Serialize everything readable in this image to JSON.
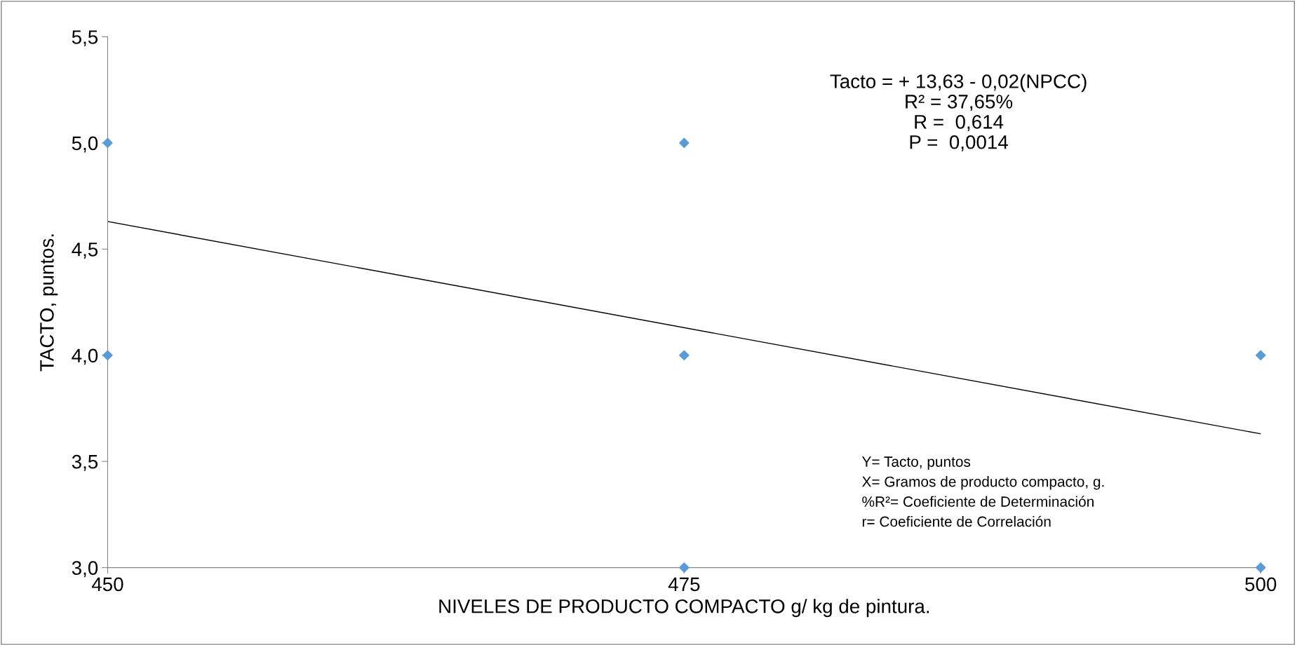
{
  "chart_data": {
    "type": "scatter",
    "xlabel": "NIVELES DE PRODUCTO COMPACTO g/ kg de pintura.",
    "ylabel": "TACTO, puntos.",
    "xlim": [
      450,
      500
    ],
    "xticks": [
      450,
      475,
      500
    ],
    "ylim": [
      3.0,
      5.5
    ],
    "yticks": [
      {
        "value": 3.0,
        "label": "3,0"
      },
      {
        "value": 3.5,
        "label": "3,5"
      },
      {
        "value": 4.0,
        "label": "4,0"
      },
      {
        "value": 4.5,
        "label": "4,5"
      },
      {
        "value": 5.0,
        "label": "5,0"
      },
      {
        "value": 5.5,
        "label": "5,5"
      }
    ],
    "grid": false,
    "legend": false,
    "marker": "diamond",
    "series": [
      {
        "color": "#5b9bd5",
        "x": [
          450,
          450,
          475,
          475,
          475,
          500,
          500
        ],
        "values": [
          5,
          4,
          5,
          4,
          3,
          4,
          3
        ]
      },
      {
        "type": "line",
        "color": "#000000",
        "line_style": "solid",
        "marker": "none",
        "x": [
          450,
          500
        ],
        "values": [
          4.63,
          3.63
        ]
      }
    ],
    "annotations": [
      "Tacto = + 13,63 - 0,02(NPCC)\nR² = 37,65%\nR =  0,614\nP =  0,0014",
      "Y= Tacto, puntos\nX= Gramos de producto compacto, g.\n%R²= Coeficiente de Determinación\nr= Coeficiente de Correlación"
    ]
  }
}
